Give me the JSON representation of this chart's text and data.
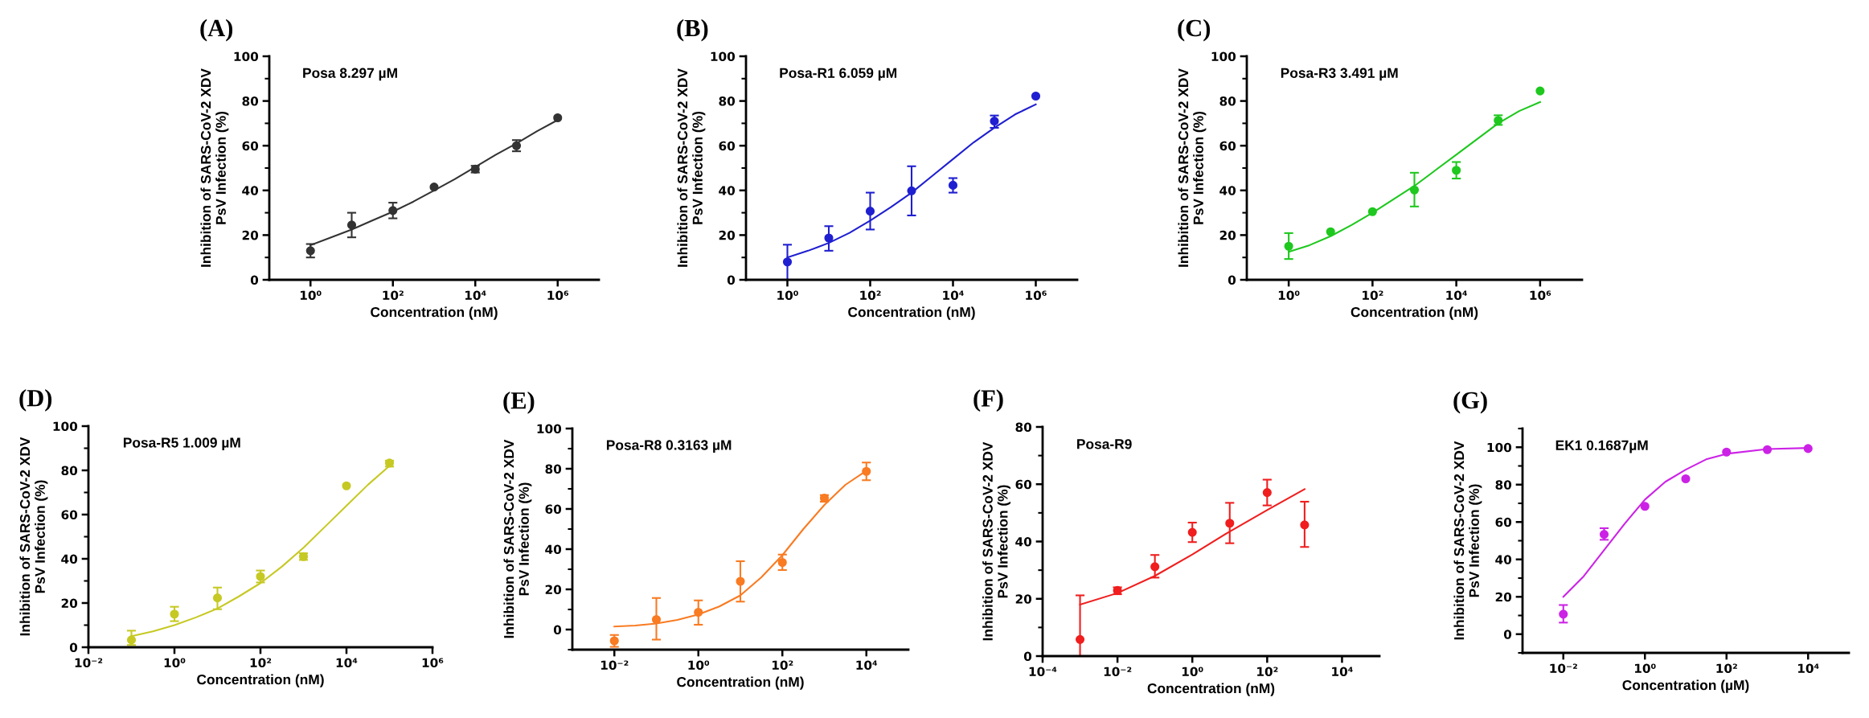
{
  "chart_data": [
    {
      "type": "scatter",
      "title": "(A)",
      "xlabel": "Concentration (nM)",
      "ylabel": "Inhibition of SARS-CoV-2 XDV\nPsV Infection (%)",
      "log": "x",
      "annotations": [
        "Posa 8.297 µM"
      ],
      "xlim": [
        0.1,
        10000000
      ],
      "xticks": [
        {
          "value": 1,
          "label": "10⁰"
        },
        {
          "value": 100,
          "label": "10²"
        },
        {
          "value": 10000,
          "label": "10⁴"
        },
        {
          "value": 1000000,
          "label": "10⁶"
        }
      ],
      "ylim": [
        0,
        100
      ],
      "yticks": [
        0,
        {
          "value": 10,
          "label": null
        },
        20,
        {
          "value": 30,
          "label": null
        },
        40,
        {
          "value": 50,
          "label": null
        },
        60,
        {
          "value": 70,
          "label": null
        },
        80,
        {
          "value": 90,
          "label": null
        },
        100
      ],
      "series": [
        {
          "type": "scatter",
          "marker": "circle",
          "color": "#333333",
          "x": [
            1,
            10,
            100,
            1000,
            10000,
            100000,
            1000000
          ],
          "values": [
            13,
            24.5,
            31,
            41.5,
            49.5,
            60,
            72.5
          ],
          "errors": [
            [
              10,
              16
            ],
            [
              19,
              30
            ],
            [
              27.5,
              34.5
            ],
            null,
            [
              48,
              51
            ],
            [
              57.5,
              62.5
            ],
            null
          ]
        },
        {
          "type": "line",
          "color": "#333333",
          "x": [
            1,
            3.16,
            10,
            31.6,
            100,
            316,
            1000,
            3162,
            10000,
            31623,
            100000,
            316228,
            1000000
          ],
          "values": [
            15.5,
            19,
            22.5,
            26.5,
            30.5,
            35,
            40,
            45,
            50.5,
            56,
            61,
            66.5,
            71.5
          ]
        }
      ]
    },
    {
      "type": "scatter",
      "title": "(B)",
      "xlabel": "Concentration (nM)",
      "ylabel": "Inhibition of SARS-CoV-2 XDV\nPsV Infection (%)",
      "log": "x",
      "annotations": [
        "Posa-R1 6.059 µM"
      ],
      "xlim": [
        0.1,
        10000000
      ],
      "xticks": [
        {
          "value": 1,
          "label": "10⁰"
        },
        {
          "value": 100,
          "label": "10²"
        },
        {
          "value": 10000,
          "label": "10⁴"
        },
        {
          "value": 1000000,
          "label": "10⁶"
        }
      ],
      "ylim": [
        0,
        100
      ],
      "yticks": [
        0,
        {
          "value": 10,
          "label": null
        },
        20,
        {
          "value": 30,
          "label": null
        },
        40,
        {
          "value": 50,
          "label": null
        },
        60,
        {
          "value": 70,
          "label": null
        },
        80,
        {
          "value": 90,
          "label": null
        },
        100
      ],
      "series": [
        {
          "type": "scatter",
          "marker": "circle",
          "color": "#1f1fd1",
          "x": [
            1,
            10,
            100,
            1000,
            10000,
            100000,
            1000000
          ],
          "values": [
            8,
            18.7,
            30.7,
            39.8,
            42.3,
            71,
            82.2
          ],
          "errors": [
            [
              0,
              15.7
            ],
            [
              13,
              24
            ],
            [
              22.5,
              39
            ],
            [
              28.8,
              50.8
            ],
            [
              39,
              45.5
            ],
            [
              68,
              73.5
            ],
            null
          ]
        },
        {
          "type": "line",
          "color": "#1f1fd1",
          "x": [
            1,
            3.16,
            10,
            31.6,
            100,
            316,
            1000,
            3162,
            10000,
            31623,
            100000,
            316228,
            1000000
          ],
          "values": [
            10,
            13,
            16.5,
            21,
            26.5,
            32.5,
            39,
            46.5,
            54,
            61.5,
            68,
            74,
            78.5
          ]
        }
      ]
    },
    {
      "type": "scatter",
      "title": "(C)",
      "xlabel": "Concentration (nM)",
      "ylabel": "Inhibition of SARS-CoV-2 XDV\nPsV Infection (%)",
      "log": "x",
      "annotations": [
        "Posa-R3 3.491 µM"
      ],
      "xlim": [
        0.1,
        10000000
      ],
      "xticks": [
        {
          "value": 1,
          "label": "10⁰"
        },
        {
          "value": 100,
          "label": "10²"
        },
        {
          "value": 10000,
          "label": "10⁴"
        },
        {
          "value": 1000000,
          "label": "10⁶"
        }
      ],
      "ylim": [
        0,
        100
      ],
      "yticks": [
        0,
        {
          "value": 10,
          "label": null
        },
        20,
        {
          "value": 30,
          "label": null
        },
        40,
        {
          "value": 50,
          "label": null
        },
        60,
        {
          "value": 70,
          "label": null
        },
        80,
        {
          "value": 90,
          "label": null
        },
        100
      ],
      "series": [
        {
          "type": "scatter",
          "marker": "circle",
          "color": "#1ec81e",
          "x": [
            1,
            10,
            100,
            1000,
            10000,
            100000,
            1000000
          ],
          "values": [
            15,
            21.5,
            30.5,
            40.2,
            49,
            71.3,
            84.5
          ],
          "errors": [
            [
              9.3,
              20.9
            ],
            null,
            null,
            [
              32.8,
              47.9
            ],
            [
              45.3,
              52.7
            ],
            [
              69.3,
              73.6
            ],
            null
          ]
        },
        {
          "type": "line",
          "color": "#1ec81e",
          "x": [
            1,
            3.16,
            10,
            31.6,
            100,
            316,
            1000,
            3162,
            10000,
            31623,
            100000,
            316228,
            1000000
          ],
          "values": [
            12.5,
            15.5,
            19.5,
            24.5,
            30,
            36,
            42,
            49,
            56,
            63,
            70,
            75.5,
            79.5
          ]
        }
      ]
    },
    {
      "type": "scatter",
      "title": "(D)",
      "xlabel": "Concentration (nM)",
      "ylabel": "Inhibition of SARS-CoV-2 XDV\nPsV Infection (%)",
      "log": "x",
      "annotations": [
        "Posa-R5 1.009 µM"
      ],
      "xlim": [
        0.01,
        1000000
      ],
      "xticks": [
        {
          "value": 0.01,
          "label": "10⁻²"
        },
        {
          "value": 1,
          "label": "10⁰"
        },
        {
          "value": 100,
          "label": "10²"
        },
        {
          "value": 10000,
          "label": "10⁴"
        },
        {
          "value": 1000000,
          "label": "10⁶"
        }
      ],
      "ylim": [
        0,
        100
      ],
      "yticks": [
        0,
        {
          "value": 10,
          "label": null
        },
        20,
        {
          "value": 30,
          "label": null
        },
        40,
        {
          "value": 50,
          "label": null
        },
        60,
        {
          "value": 70,
          "label": null
        },
        80,
        {
          "value": 90,
          "label": null
        },
        100
      ],
      "series": [
        {
          "type": "scatter",
          "marker": "circle",
          "color": "#c6c923",
          "x": [
            0.1,
            1,
            10,
            100,
            1000,
            10000,
            100000
          ],
          "values": [
            3.3,
            15,
            22.3,
            32,
            41,
            73,
            83.3
          ],
          "errors": [
            [
              1,
              7.5
            ],
            [
              11.8,
              18.3
            ],
            [
              17.2,
              27
            ],
            [
              29.3,
              34.7
            ],
            [
              39.5,
              42.5
            ],
            null,
            [
              81.7,
              84.4
            ]
          ]
        },
        {
          "type": "line",
          "color": "#c6c923",
          "x": [
            0.1,
            0.316,
            1,
            3.16,
            10,
            31.6,
            100,
            316,
            1000,
            3162,
            10000,
            31623,
            100000
          ],
          "values": [
            5,
            7.2,
            10,
            13.5,
            17.5,
            23,
            29,
            36.5,
            45,
            54.5,
            64,
            73.5,
            82
          ]
        }
      ]
    },
    {
      "type": "scatter",
      "title": "(E)",
      "xlabel": "Concentration (nM)",
      "ylabel": "Inhibition of SARS-CoV-2 XDV\nPsV Infection (%)",
      "log": "x",
      "annotations": [
        "Posa-R8 0.3163 µM"
      ],
      "xlim": [
        0.001,
        100000
      ],
      "xticks": [
        {
          "value": 0.01,
          "label": "10⁻²"
        },
        {
          "value": 1,
          "label": "10⁰"
        },
        {
          "value": 100,
          "label": "10²"
        },
        {
          "value": 10000,
          "label": "10⁴"
        }
      ],
      "ylim": [
        -10,
        100
      ],
      "yticks": [
        {
          "value": -10,
          "label": null
        },
        0,
        {
          "value": 10,
          "label": null
        },
        20,
        {
          "value": 30,
          "label": null
        },
        40,
        {
          "value": 50,
          "label": null
        },
        60,
        {
          "value": 70,
          "label": null
        },
        80,
        {
          "value": 90,
          "label": null
        },
        100
      ],
      "series": [
        {
          "type": "scatter",
          "marker": "circle",
          "color": "#f97b22",
          "x": [
            0.01,
            0.1,
            1,
            10,
            100,
            1000,
            10000
          ],
          "values": [
            -5.6,
            5,
            8.6,
            24,
            33.4,
            65.4,
            78.7
          ],
          "errors": [
            [
              -8.6,
              -2.7
            ],
            [
              -5,
              15.7
            ],
            [
              2.4,
              14.5
            ],
            [
              13.9,
              34
            ],
            [
              29.6,
              37.3
            ],
            [
              63.6,
              66.9
            ],
            [
              74.3,
              83.1
            ]
          ]
        },
        {
          "type": "line",
          "color": "#f97b22",
          "x": [
            0.01,
            0.0316,
            0.1,
            0.316,
            1,
            3.16,
            10,
            31.6,
            100,
            316,
            1000,
            3162,
            10000
          ],
          "values": [
            1.5,
            2,
            3,
            4.8,
            7.5,
            11.5,
            17,
            26,
            37,
            50,
            62,
            72,
            79
          ]
        }
      ]
    },
    {
      "type": "scatter",
      "title": "(F)",
      "xlabel": "Concentration (nM)",
      "ylabel": "Inhibition of SARS-CoV-2 XDV\nPsV Infection (%)",
      "log": "x",
      "annotations": [
        "Posa-R9"
      ],
      "xlim": [
        0.0001,
        100000
      ],
      "xticks": [
        {
          "value": 0.0001,
          "label": "10⁻⁴"
        },
        {
          "value": 0.01,
          "label": "10⁻²"
        },
        {
          "value": 1,
          "label": "10⁰"
        },
        {
          "value": 100,
          "label": "10²"
        },
        {
          "value": 10000,
          "label": "10⁴"
        }
      ],
      "ylim": [
        0,
        80
      ],
      "yticks": [
        0,
        {
          "value": 10,
          "label": null
        },
        20,
        {
          "value": 30,
          "label": null
        },
        40,
        {
          "value": 50,
          "label": null
        },
        60,
        {
          "value": 70,
          "label": null
        },
        80
      ],
      "series": [
        {
          "type": "scatter",
          "marker": "circle",
          "color": "#f01e1e",
          "x": [
            0.001,
            0.01,
            0.1,
            1,
            10,
            100,
            1000
          ],
          "values": [
            5.8,
            22.9,
            31.2,
            43.2,
            46.4,
            57.1,
            45.8
          ],
          "errors": [
            [
              0,
              21.2
            ],
            [
              21.6,
              24
            ],
            [
              27.4,
              35.3
            ],
            [
              39.8,
              46.6
            ],
            [
              39.4,
              53.5
            ],
            [
              52.6,
              61.6
            ],
            [
              38.1,
              53.9
            ]
          ]
        },
        {
          "type": "line",
          "color": "#f01e1e",
          "x": [
            0.001,
            0.01,
            0.1,
            1,
            10,
            100,
            1000
          ],
          "values": [
            18,
            22,
            28,
            35.5,
            43.5,
            51,
            58.3
          ]
        }
      ]
    },
    {
      "type": "scatter",
      "title": "(G)",
      "xlabel": "Concentration (µM)",
      "ylabel": "Inhibition of SARS-CoV-2 XDV\nPsV Infection (%)",
      "log": "x",
      "annotations": [
        "EK1 0.1687µM"
      ],
      "xlim": [
        0.001,
        100000
      ],
      "xticks": [
        {
          "value": 0.01,
          "label": "10⁻²"
        },
        {
          "value": 1,
          "label": "10⁰"
        },
        {
          "value": 100,
          "label": "10²"
        },
        {
          "value": 10000,
          "label": "10⁴"
        }
      ],
      "ylim": [
        -10,
        110
      ],
      "yticks": [
        {
          "value": -10,
          "label": null
        },
        0,
        {
          "value": 10,
          "label": null
        },
        20,
        {
          "value": 30,
          "label": null
        },
        40,
        {
          "value": 50,
          "label": null
        },
        60,
        {
          "value": 70,
          "label": null
        },
        80,
        {
          "value": 90,
          "label": null
        },
        100,
        {
          "value": 110,
          "label": null
        }
      ],
      "series": [
        {
          "type": "scatter",
          "marker": "circle",
          "color": "#cc22e6",
          "x": [
            0.01,
            0.1,
            1,
            10,
            100,
            1000,
            10000
          ],
          "values": [
            10.7,
            53.4,
            68.4,
            83.1,
            97.4,
            98.7,
            99.3
          ],
          "errors": [
            [
              6.2,
              15.6
            ],
            [
              50.5,
              56.7
            ],
            null,
            null,
            null,
            null,
            null
          ]
        },
        {
          "type": "line",
          "color": "#cc22e6",
          "x": [
            0.01,
            0.0316,
            0.1,
            0.316,
            1,
            3.16,
            10,
            31.6,
            100,
            1000,
            10000
          ],
          "values": [
            20,
            31,
            45,
            59,
            72,
            81.5,
            88,
            93.5,
            96.5,
            99,
            99.6
          ]
        }
      ]
    }
  ]
}
